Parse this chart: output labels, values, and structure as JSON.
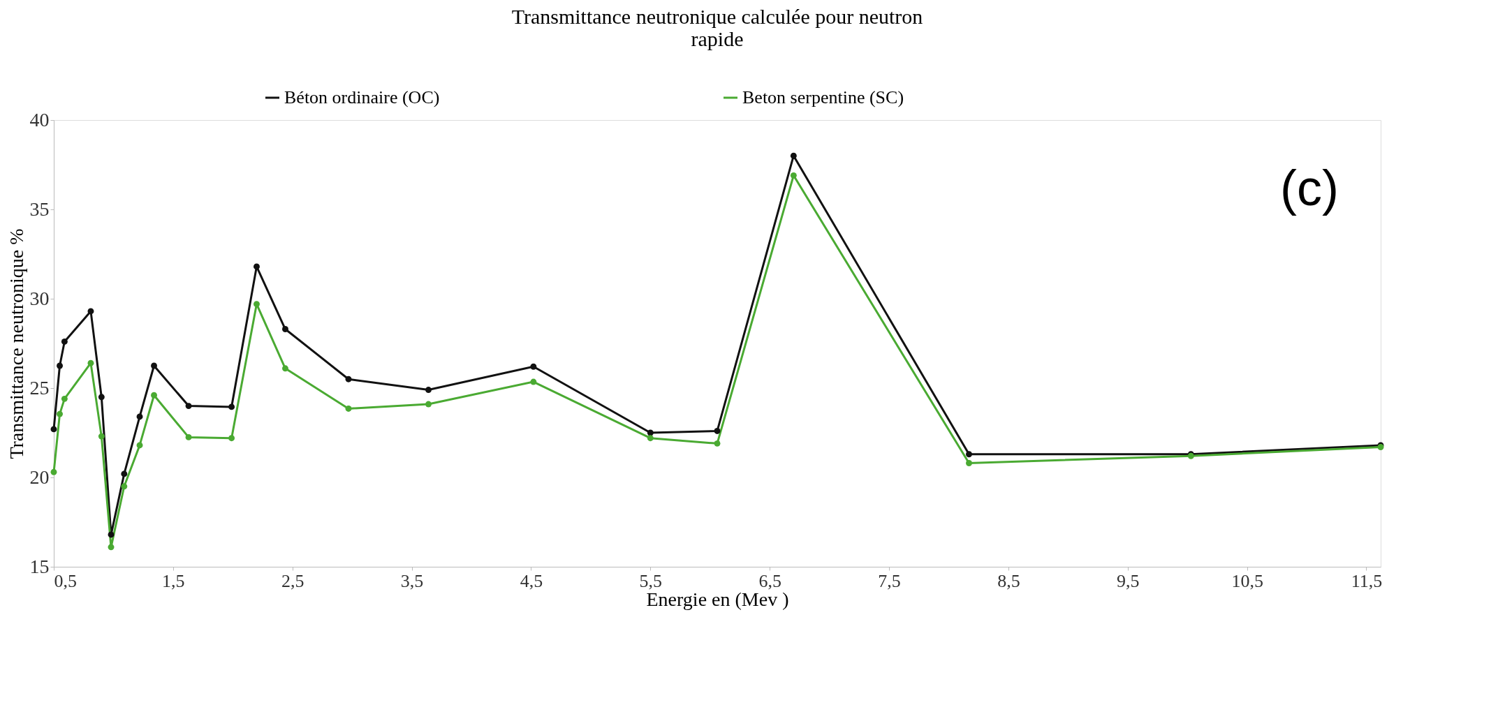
{
  "chart_data": {
    "type": "line",
    "title": [
      "Transmittance neutronique calculée pour neutron",
      "rapide"
    ],
    "xlabel": "Energie en (Mev )",
    "ylabel": "Transmittance neutronique %",
    "x": [
      0.5,
      0.55,
      0.59,
      0.81,
      0.9,
      0.98,
      1.09,
      1.22,
      1.34,
      1.63,
      1.99,
      2.2,
      2.44,
      2.97,
      3.64,
      4.52,
      5.5,
      6.06,
      6.7,
      8.17,
      10.03,
      11.62
    ],
    "series": [
      {
        "name": "Béton ordinaire (OC)",
        "color": "#111111",
        "values": [
          22.7,
          26.25,
          27.6,
          29.3,
          24.5,
          16.8,
          20.2,
          23.4,
          26.25,
          24.0,
          23.95,
          31.8,
          28.3,
          25.5,
          24.9,
          26.2,
          22.5,
          22.6,
          38.0,
          21.3,
          21.3,
          21.8
        ]
      },
      {
        "name": "Beton serpentine (SC)",
        "color": "#4aaa32",
        "values": [
          20.3,
          23.55,
          24.4,
          26.4,
          22.3,
          16.1,
          19.5,
          21.8,
          24.6,
          22.25,
          22.2,
          29.7,
          26.1,
          23.85,
          24.1,
          25.35,
          22.2,
          21.9,
          36.9,
          20.8,
          21.2,
          21.7
        ]
      }
    ],
    "xlim": [
      0.5,
      11.62
    ],
    "xticks": [
      {
        "value": 0.5,
        "label": "0,5"
      },
      {
        "value": 1.5,
        "label": "1,5"
      },
      {
        "value": 2.5,
        "label": "2,5"
      },
      {
        "value": 3.5,
        "label": "3,5"
      },
      {
        "value": 4.5,
        "label": "4,5"
      },
      {
        "value": 5.5,
        "label": "5,5"
      },
      {
        "value": 6.5,
        "label": "6,5"
      },
      {
        "value": 7.5,
        "label": "7,5"
      },
      {
        "value": 8.5,
        "label": "8,5"
      },
      {
        "value": 9.5,
        "label": "9,5"
      },
      {
        "value": 10.5,
        "label": "10,5"
      },
      {
        "value": 11.5,
        "label": "11,5"
      }
    ],
    "ylim": [
      15,
      40
    ],
    "yticks": [
      15,
      20,
      25,
      30,
      35,
      40
    ],
    "annotations": [
      "(c)"
    ],
    "grid": false,
    "legend": "top",
    "marker": "circle",
    "line_style": "solid"
  }
}
